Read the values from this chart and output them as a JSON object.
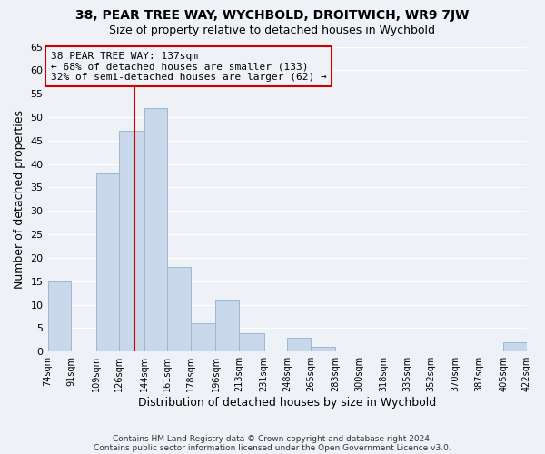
{
  "title": "38, PEAR TREE WAY, WYCHBOLD, DROITWICH, WR9 7JW",
  "subtitle": "Size of property relative to detached houses in Wychbold",
  "xlabel": "Distribution of detached houses by size in Wychbold",
  "ylabel": "Number of detached properties",
  "bar_edges": [
    74,
    91,
    109,
    126,
    144,
    161,
    178,
    196,
    213,
    231,
    248,
    265,
    283,
    300,
    318,
    335,
    352,
    370,
    387,
    405,
    422
  ],
  "bar_heights": [
    15,
    0,
    38,
    47,
    52,
    18,
    6,
    11,
    4,
    0,
    3,
    1,
    0,
    0,
    0,
    0,
    0,
    0,
    0,
    2
  ],
  "bar_color": "#c8d8ea",
  "bar_edge_color": "#9ab8d0",
  "vline_x": 137,
  "vline_color": "#cc0000",
  "ylim": [
    0,
    65
  ],
  "yticks": [
    0,
    5,
    10,
    15,
    20,
    25,
    30,
    35,
    40,
    45,
    50,
    55,
    60,
    65
  ],
  "tick_labels": [
    "74sqm",
    "91sqm",
    "109sqm",
    "126sqm",
    "144sqm",
    "161sqm",
    "178sqm",
    "196sqm",
    "213sqm",
    "231sqm",
    "248sqm",
    "265sqm",
    "283sqm",
    "300sqm",
    "318sqm",
    "335sqm",
    "352sqm",
    "370sqm",
    "387sqm",
    "405sqm",
    "422sqm"
  ],
  "annotation_title": "38 PEAR TREE WAY: 137sqm",
  "annotation_line1": "← 68% of detached houses are smaller (133)",
  "annotation_line2": "32% of semi-detached houses are larger (62) →",
  "annotation_box_color": "#cc0000",
  "footer1": "Contains HM Land Registry data © Crown copyright and database right 2024.",
  "footer2": "Contains public sector information licensed under the Open Government Licence v3.0.",
  "background_color": "#eef2f7",
  "grid_color": "#ffffff"
}
